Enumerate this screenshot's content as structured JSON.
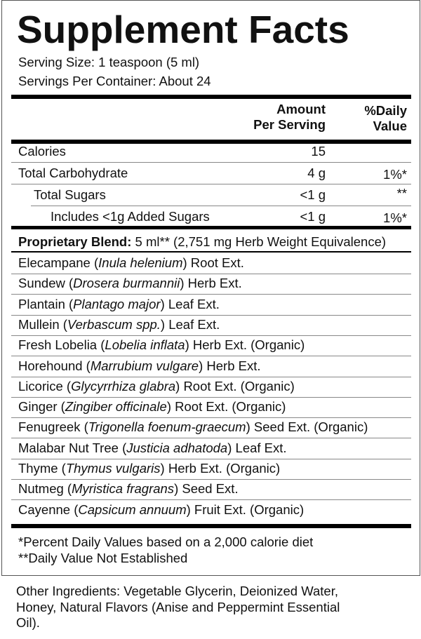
{
  "title": "Supplement Facts",
  "serving_size": "Serving Size: 1 teaspoon (5 ml)",
  "servings_per_container": "Servings Per Container: About 24",
  "header": {
    "amount_1": "Amount",
    "amount_2": "Per Serving",
    "dv_1": "%Daily",
    "dv_2": "Value"
  },
  "nutrients": [
    {
      "name": "Calories",
      "amount": "15",
      "dv": ""
    },
    {
      "name": "Total Carbohydrate",
      "amount": "4 g",
      "dv": "1%*"
    },
    {
      "name": "Total Sugars",
      "amount": "<1 g",
      "dv": "**"
    },
    {
      "name": "Includes <1g Added Sugars",
      "amount": "<1 g",
      "dv": "1%*"
    }
  ],
  "blend": {
    "label": "Proprietary Blend:",
    "detail": " 5 ml** (2,751 mg Herb Weight Equivalence)"
  },
  "ingredients": [
    {
      "common": "Elecampane (",
      "latin": "Inula helenium",
      "rest": ") Root Ext."
    },
    {
      "common": "Sundew (",
      "latin": "Drosera burmannii",
      "rest": ") Herb Ext."
    },
    {
      "common": "Plantain (",
      "latin": "Plantago major",
      "rest": ") Leaf Ext."
    },
    {
      "common": "Mullein (",
      "latin": "Verbascum spp.",
      "rest": ") Leaf Ext."
    },
    {
      "common": "Fresh Lobelia (",
      "latin": "Lobelia inflata",
      "rest": ") Herb Ext. (Organic)"
    },
    {
      "common": "Horehound (",
      "latin": "Marrubium vulgare",
      "rest": ") Herb Ext."
    },
    {
      "common": "Licorice (",
      "latin": "Glycyrrhiza glabra",
      "rest": ") Root Ext. (Organic)"
    },
    {
      "common": "Ginger (",
      "latin": "Zingiber officinale",
      "rest": ") Root Ext. (Organic)"
    },
    {
      "common": "Fenugreek (",
      "latin": "Trigonella foenum-graecum",
      "rest": ") Seed Ext. (Organic)"
    },
    {
      "common": "Malabar Nut Tree (",
      "latin": "Justicia adhatoda",
      "rest": ") Leaf Ext."
    },
    {
      "common": "Thyme (",
      "latin": "Thymus vulgaris",
      "rest": ") Herb Ext. (Organic)"
    },
    {
      "common": "Nutmeg (",
      "latin": "Myristica fragrans",
      "rest": ") Seed Ext."
    },
    {
      "common": "Cayenne (",
      "latin": "Capsicum annuum",
      "rest": ") Fruit Ext. (Organic)"
    }
  ],
  "footnotes": [
    "*Percent Daily Values based on a 2,000 calorie diet",
    "**Daily Value Not Established"
  ],
  "other_ingredients": [
    "Other Ingredients: Vegetable Glycerin, Deionized Water,",
    "Honey, Natural Flavors (Anise and Peppermint Essential",
    "Oil)."
  ]
}
